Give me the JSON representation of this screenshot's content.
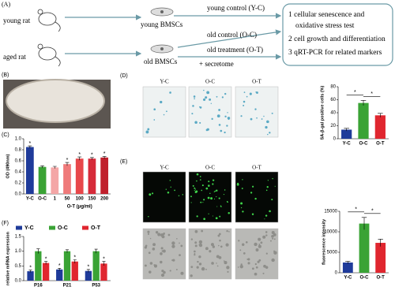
{
  "panel_a": {
    "label": "(A)",
    "young_rat": "young rat",
    "aged_rat": "aged rat",
    "young_cells": "young BMSCs",
    "old_cells": "old BMSCs",
    "groups": [
      "young control (Y-C)",
      "old control (O-C)",
      "old treatment (O-T)"
    ],
    "treatment_note": "+ secretome",
    "tests": [
      "1 cellular senescence  and",
      "oxidative stress test",
      "2 cell growth and differentiation",
      "3 qRT-PCR for related markers"
    ]
  },
  "panel_b": {
    "label": "(B)"
  },
  "panel_c": {
    "label": "(C)"
  },
  "panel_d": {
    "label": "(D)",
    "image_labels": [
      "Y-C",
      "O-C",
      "O-T"
    ]
  },
  "panel_e": {
    "label": "(E)",
    "image_labels": [
      "Y-C",
      "O-C",
      "O-T"
    ]
  },
  "panel_f": {
    "label": "(F)"
  },
  "chart_data": [
    {
      "type": "bar",
      "y_label": "OD (490nm)",
      "x_label": "O-T (μg/ml)",
      "categories": [
        "Y-C",
        "O-C",
        "1",
        "50",
        "100",
        "150",
        "200"
      ],
      "values": [
        0.85,
        0.49,
        0.48,
        0.54,
        0.64,
        0.64,
        0.66
      ],
      "errors": [
        0.02,
        0.02,
        0.02,
        0.03,
        0.03,
        0.02,
        0.02
      ],
      "colors": [
        "#1f3b9a",
        "#3aa335",
        "#f4a6a6",
        "#ef7a7a",
        "#e8474a",
        "#d62b3a",
        "#c0202c"
      ],
      "significance": [
        "*",
        null,
        null,
        "*",
        "*",
        "*",
        "*"
      ],
      "ylim": [
        0,
        1.0
      ],
      "yticks": [
        {
          "value": 0,
          "label": "0.0"
        },
        {
          "value": 0.2,
          "label": "0.2"
        },
        {
          "value": 0.4,
          "label": "0.4"
        },
        {
          "value": 0.6,
          "label": "0.6"
        },
        {
          "value": 0.8,
          "label": "0.8"
        },
        {
          "value": 1.0,
          "label": "1.0"
        }
      ]
    },
    {
      "type": "bar",
      "y_label": "SA-β-gal positive cells (%)",
      "categories": [
        "Y-C",
        "O-C",
        "O-T"
      ],
      "values": [
        14,
        55,
        36
      ],
      "errors": [
        2,
        4,
        3
      ],
      "colors": [
        "#1f3b9a",
        "#3aa335",
        "#e0262f"
      ],
      "annotations": [
        "*",
        "*"
      ],
      "ylim": [
        0,
        80
      ],
      "yticks": [
        0,
        20,
        40,
        60,
        80
      ]
    },
    {
      "type": "bar",
      "y_label": "fluorescence intensity",
      "categories": [
        "Y-C",
        "O-C",
        "O-T"
      ],
      "values": [
        2500,
        12000,
        7300
      ],
      "errors": [
        300,
        1500,
        900
      ],
      "colors": [
        "#1f3b9a",
        "#3aa335",
        "#e0262f"
      ],
      "annotations": [
        "*",
        "*"
      ],
      "ylim": [
        0,
        15000
      ],
      "yticks": [
        0,
        5000,
        10000,
        15000
      ]
    },
    {
      "type": "bar",
      "y_label": "relative mRNA expression",
      "legend": "top",
      "categories": [
        "P16",
        "P21",
        "P53"
      ],
      "series": [
        {
          "name": "Y-C",
          "color": "#1f3b9a",
          "values": [
            0.32,
            0.38,
            0.33
          ],
          "errors": [
            0.04,
            0.04,
            0.05
          ],
          "significance": [
            "*",
            "*",
            "*"
          ]
        },
        {
          "name": "O-C",
          "color": "#3aa335",
          "values": [
            1.0,
            1.0,
            1.0
          ],
          "errors": [
            0.08,
            0.05,
            0.07
          ],
          "significance": [
            null,
            null,
            null
          ]
        },
        {
          "name": "O-T",
          "color": "#e0262f",
          "values": [
            0.6,
            0.65,
            0.58
          ],
          "errors": [
            0.05,
            0.06,
            0.07
          ],
          "significance": [
            "*",
            "*",
            "*"
          ]
        }
      ],
      "ylim": [
        0,
        1.5
      ],
      "yticks": [
        {
          "value": 0,
          "label": "0.0"
        },
        {
          "value": 0.5,
          "label": "0.5"
        },
        {
          "value": 1.0,
          "label": "1.0"
        },
        {
          "value": 1.5,
          "label": "1.5"
        }
      ]
    }
  ]
}
